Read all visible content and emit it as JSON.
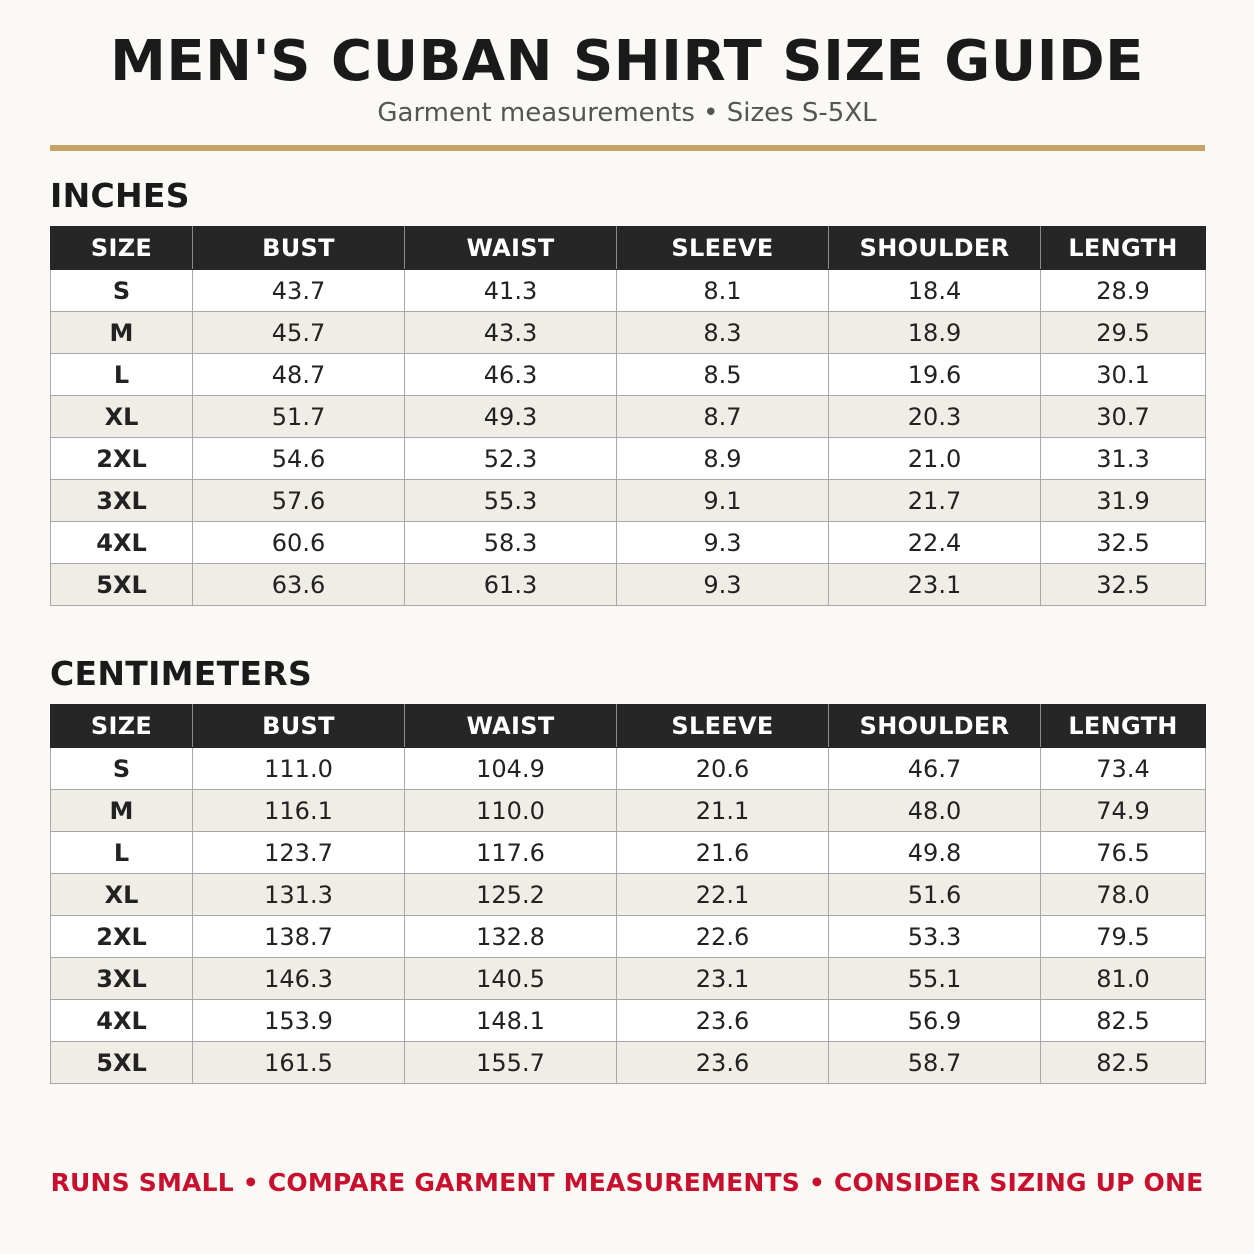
{
  "header": {
    "title": "MEN'S CUBAN SHIRT SIZE GUIDE",
    "subtitle": "Garment measurements • Sizes S-5XL"
  },
  "colors": {
    "background": "#faf9f5",
    "accent_rule": "#c5a265",
    "table_header": "#262626",
    "row_alt": "#efede6",
    "footer_text": "#c8102e"
  },
  "inches": {
    "heading": "INCHES",
    "columns": [
      "SIZE",
      "BUST",
      "WAIST",
      "SLEEVE",
      "SHOULDER",
      "LENGTH"
    ],
    "rows": [
      [
        "S",
        "43.7",
        "41.3",
        "8.1",
        "18.4",
        "28.9"
      ],
      [
        "M",
        "45.7",
        "43.3",
        "8.3",
        "18.9",
        "29.5"
      ],
      [
        "L",
        "48.7",
        "46.3",
        "8.5",
        "19.6",
        "30.1"
      ],
      [
        "XL",
        "51.7",
        "49.3",
        "8.7",
        "20.3",
        "30.7"
      ],
      [
        "2XL",
        "54.6",
        "52.3",
        "8.9",
        "21.0",
        "31.3"
      ],
      [
        "3XL",
        "57.6",
        "55.3",
        "9.1",
        "21.7",
        "31.9"
      ],
      [
        "4XL",
        "60.6",
        "58.3",
        "9.3",
        "22.4",
        "32.5"
      ],
      [
        "5XL",
        "63.6",
        "61.3",
        "9.3",
        "23.1",
        "32.5"
      ]
    ]
  },
  "centimeters": {
    "heading": "CENTIMETERS",
    "columns": [
      "SIZE",
      "BUST",
      "WAIST",
      "SLEEVE",
      "SHOULDER",
      "LENGTH"
    ],
    "rows": [
      [
        "S",
        "111.0",
        "104.9",
        "20.6",
        "46.7",
        "73.4"
      ],
      [
        "M",
        "116.1",
        "110.0",
        "21.1",
        "48.0",
        "74.9"
      ],
      [
        "L",
        "123.7",
        "117.6",
        "21.6",
        "49.8",
        "76.5"
      ],
      [
        "XL",
        "131.3",
        "125.2",
        "22.1",
        "51.6",
        "78.0"
      ],
      [
        "2XL",
        "138.7",
        "132.8",
        "22.6",
        "53.3",
        "79.5"
      ],
      [
        "3XL",
        "146.3",
        "140.5",
        "23.1",
        "55.1",
        "81.0"
      ],
      [
        "4XL",
        "153.9",
        "148.1",
        "23.6",
        "56.9",
        "82.5"
      ],
      [
        "5XL",
        "161.5",
        "155.7",
        "23.6",
        "58.7",
        "82.5"
      ]
    ]
  },
  "footer": {
    "note": "RUNS SMALL • COMPARE GARMENT MEASUREMENTS • CONSIDER SIZING UP ONE"
  }
}
